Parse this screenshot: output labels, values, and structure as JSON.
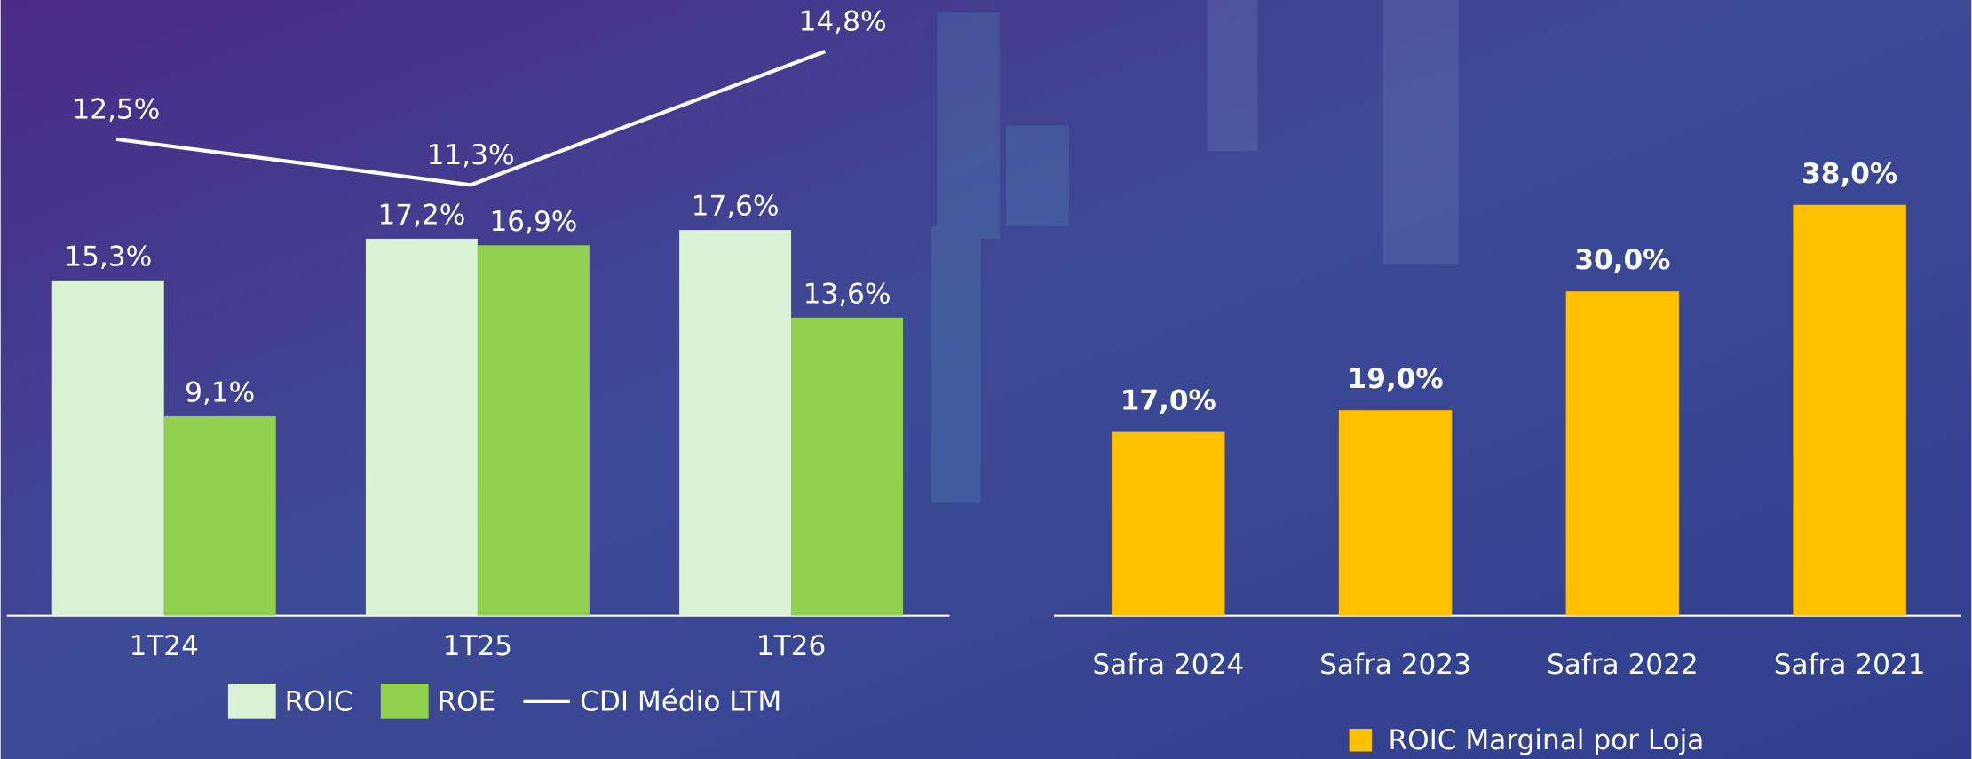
{
  "chart_data": [
    {
      "type": "bar",
      "categories": [
        "1T24",
        "1T25",
        "1T26"
      ],
      "series": [
        {
          "name": "ROIC",
          "type": "bar",
          "color": "#d9f2d4",
          "values": [
            15.3,
            17.2,
            17.6
          ],
          "value_labels": [
            "15,3%",
            "17,2%",
            "17,6%"
          ]
        },
        {
          "name": "ROE",
          "type": "bar",
          "color": "#92d050",
          "values": [
            9.1,
            16.9,
            13.6
          ],
          "value_labels": [
            "9,1%",
            "16,9%",
            "13,6%"
          ]
        },
        {
          "name": "CDI Médio LTM",
          "type": "line",
          "color": "#ffffff",
          "values": [
            12.5,
            11.3,
            14.8
          ],
          "value_labels": [
            "12,5%",
            "11,3%",
            "14,8%"
          ]
        }
      ]
    },
    {
      "type": "bar",
      "categories": [
        "Safra 2024",
        "Safra 2023",
        "Safra 2022",
        "Safra 2021"
      ],
      "series": [
        {
          "name": "ROIC Marginal por Loja",
          "type": "bar",
          "color": "#ffc000",
          "values": [
            17.0,
            19.0,
            30.0,
            38.0
          ],
          "value_labels": [
            "17,0%",
            "19,0%",
            "30,0%",
            "38,0%"
          ]
        }
      ]
    }
  ]
}
